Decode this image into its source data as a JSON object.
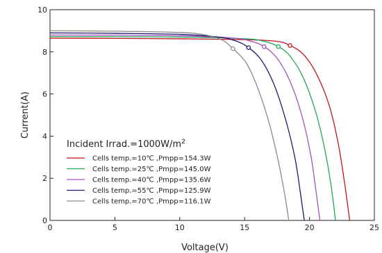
{
  "chart_data": {
    "type": "line",
    "title": "",
    "xlabel": "Voltage(V)",
    "ylabel": "Current(A)",
    "xlim": [
      0,
      25
    ],
    "ylim": [
      0,
      10
    ],
    "x_ticks": [
      0,
      5,
      10,
      15,
      20,
      25
    ],
    "y_ticks": [
      0,
      2,
      4,
      6,
      8,
      10
    ],
    "grid": false,
    "legend_title": "Incident Irrad.=1000W/m",
    "legend_title_sup": "2",
    "legend_position": "lower-left",
    "series": [
      {
        "name": "Cells temp.=10℃ ,Pmpp=154.3W",
        "color": "#c1121f",
        "mpp": [
          18.5,
          8.3
        ],
        "points": [
          [
            0,
            8.65
          ],
          [
            5,
            8.64
          ],
          [
            10,
            8.62
          ],
          [
            15,
            8.58
          ],
          [
            17.5,
            8.5
          ],
          [
            18.5,
            8.3
          ],
          [
            19.5,
            7.9
          ],
          [
            20.5,
            7.0
          ],
          [
            21.5,
            5.5
          ],
          [
            22.2,
            3.7
          ],
          [
            22.7,
            1.8
          ],
          [
            23.1,
            0
          ]
        ]
      },
      {
        "name": "Cells temp.=25℃ ,Pmpp=145.0W",
        "color": "#1fa85a",
        "mpp": [
          17.6,
          8.25
        ],
        "points": [
          [
            0,
            8.73
          ],
          [
            5,
            8.72
          ],
          [
            10,
            8.7
          ],
          [
            15,
            8.62
          ],
          [
            16.5,
            8.5
          ],
          [
            17.6,
            8.25
          ],
          [
            18.5,
            7.8
          ],
          [
            19.5,
            6.8
          ],
          [
            20.5,
            5.1
          ],
          [
            21.2,
            3.3
          ],
          [
            21.7,
            1.5
          ],
          [
            22.0,
            0
          ]
        ]
      },
      {
        "name": "Cells temp.=40℃ ,Pmpp=135.6W",
        "color": "#a550c0",
        "mpp": [
          16.5,
          8.25
        ],
        "points": [
          [
            0,
            8.8
          ],
          [
            5,
            8.79
          ],
          [
            10,
            8.76
          ],
          [
            14,
            8.66
          ],
          [
            15.5,
            8.5
          ],
          [
            16.5,
            8.25
          ],
          [
            17.5,
            7.7
          ],
          [
            18.5,
            6.6
          ],
          [
            19.4,
            5.0
          ],
          [
            20.1,
            3.1
          ],
          [
            20.5,
            1.4
          ],
          [
            20.8,
            0
          ]
        ]
      },
      {
        "name": "Cells temp.=55℃ ,Pmpp=125.9W",
        "color": "#1a1a6e",
        "mpp": [
          15.3,
          8.2
        ],
        "points": [
          [
            0,
            8.9
          ],
          [
            5,
            8.88
          ],
          [
            10,
            8.83
          ],
          [
            13,
            8.7
          ],
          [
            14.4,
            8.5
          ],
          [
            15.3,
            8.2
          ],
          [
            16.3,
            7.6
          ],
          [
            17.3,
            6.4
          ],
          [
            18.2,
            4.7
          ],
          [
            18.9,
            2.9
          ],
          [
            19.3,
            1.3
          ],
          [
            19.6,
            0
          ]
        ]
      },
      {
        "name": "Cells temp.=70℃ ,Pmpp=116.1W",
        "color": "#8a8a8a",
        "mpp": [
          14.1,
          8.15
        ],
        "points": [
          [
            0,
            9.0
          ],
          [
            5,
            8.98
          ],
          [
            10,
            8.92
          ],
          [
            12,
            8.8
          ],
          [
            13.3,
            8.55
          ],
          [
            14.1,
            8.15
          ],
          [
            15.1,
            7.5
          ],
          [
            16.0,
            6.3
          ],
          [
            16.9,
            4.6
          ],
          [
            17.6,
            2.8
          ],
          [
            18.1,
            1.2
          ],
          [
            18.4,
            0
          ]
        ]
      }
    ]
  }
}
